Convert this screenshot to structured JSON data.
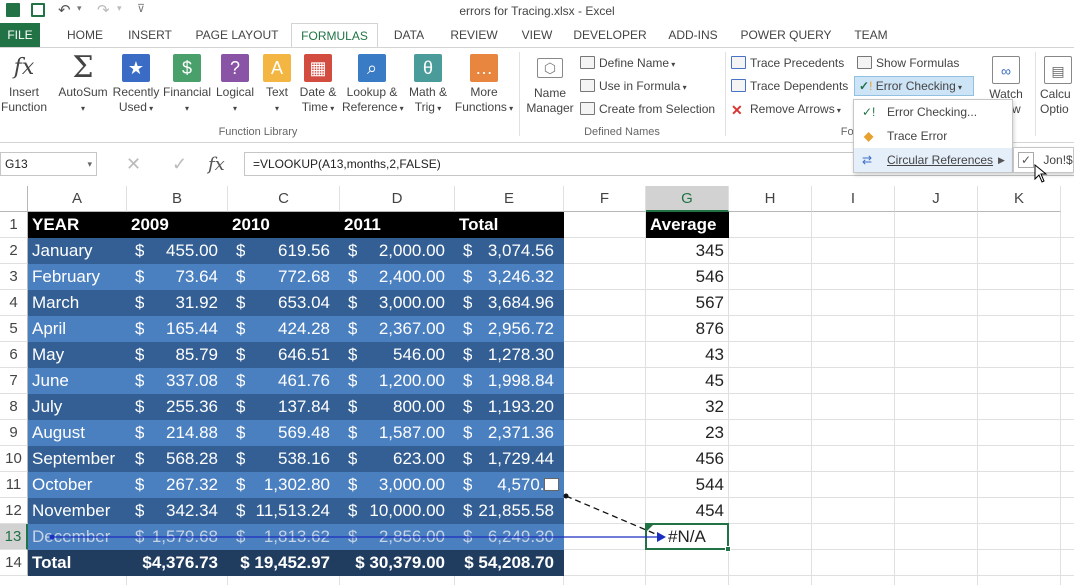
{
  "window": {
    "title": "errors for Tracing.xlsx - Excel"
  },
  "colors": {
    "excel_green": "#217346",
    "header_black": "#000000",
    "band_dark": "#335f94",
    "band_light": "#4a7fc0",
    "total_dark": "#203d5f",
    "trace_blue": "#1a2fbf"
  },
  "tabs": [
    "FILE",
    "HOME",
    "INSERT",
    "PAGE LAYOUT",
    "FORMULAS",
    "DATA",
    "REVIEW",
    "VIEW",
    "DEVELOPER",
    "ADD-INS",
    "POWER QUERY",
    "TEAM"
  ],
  "ribbon": {
    "insert_function": [
      "Insert",
      "Function"
    ],
    "autosum": "AutoSum",
    "recently_used": [
      "Recently",
      "Used"
    ],
    "financial": "Financial",
    "logical": "Logical",
    "text": "Text",
    "date_time": [
      "Date &",
      "Time"
    ],
    "lookup": [
      "Lookup &",
      "Reference"
    ],
    "math": [
      "Math &",
      "Trig"
    ],
    "more": [
      "More",
      "Functions"
    ],
    "function_library": "Function Library",
    "name_manager": [
      "Name",
      "Manager"
    ],
    "define_name": "Define Name",
    "use_in_formula": "Use in Formula",
    "create_from_selection": "Create from Selection",
    "defined_names": "Defined Names",
    "trace_precedents": "Trace Precedents",
    "trace_dependents": "Trace Dependents",
    "remove_arrows": "Remove Arrows",
    "show_formulas": "Show Formulas",
    "error_checking": "Error Checking",
    "formula_auditing_partial": "For",
    "watch": [
      "Watch",
      "ow"
    ],
    "calc": [
      "Calcu",
      "Optio"
    ]
  },
  "menu": {
    "items": [
      "Error Checking...",
      "Trace Error",
      "Circular References"
    ],
    "submenu_item": "Jon!$"
  },
  "formula_bar": {
    "name_box": "G13",
    "fx": "fx",
    "formula": "=VLOOKUP(A13,months,2,FALSE)"
  },
  "columns": [
    "A",
    "B",
    "C",
    "D",
    "E",
    "F",
    "G",
    "H",
    "I",
    "J",
    "K"
  ],
  "rows": [
    "1",
    "2",
    "3",
    "4",
    "5",
    "6",
    "7",
    "8",
    "9",
    "10",
    "11",
    "12",
    "13",
    "14"
  ],
  "header_row": [
    "YEAR",
    "2009",
    "2010",
    "2011",
    "Total"
  ],
  "g_header": "Average",
  "table": [
    {
      "month": "January",
      "b": "455.00",
      "c": "619.56",
      "d": "2,000.00",
      "e": "3,074.56",
      "g": "345"
    },
    {
      "month": "February",
      "b": "73.64",
      "c": "772.68",
      "d": "2,400.00",
      "e": "3,246.32",
      "g": "546"
    },
    {
      "month": "March",
      "b": "31.92",
      "c": "653.04",
      "d": "3,000.00",
      "e": "3,684.96",
      "g": "567"
    },
    {
      "month": "April",
      "b": "165.44",
      "c": "424.28",
      "d": "2,367.00",
      "e": "2,956.72",
      "g": "876"
    },
    {
      "month": "May",
      "b": "85.79",
      "c": "646.51",
      "d": "546.00",
      "e": "1,278.30",
      "g": "43"
    },
    {
      "month": "June",
      "b": "337.08",
      "c": "461.76",
      "d": "1,200.00",
      "e": "1,998.84",
      "g": "45"
    },
    {
      "month": "July",
      "b": "255.36",
      "c": "137.84",
      "d": "800.00",
      "e": "1,193.20",
      "g": "32"
    },
    {
      "month": "August",
      "b": "214.88",
      "c": "569.48",
      "d": "1,587.00",
      "e": "2,371.36",
      "g": "23"
    },
    {
      "month": "September",
      "b": "568.28",
      "c": "538.16",
      "d": "623.00",
      "e": "1,729.44",
      "g": "456"
    },
    {
      "month": "October",
      "b": "267.32",
      "c": "1,302.80",
      "d": "3,000.00",
      "e": "4,570.1",
      "g": "544"
    },
    {
      "month": "November",
      "b": "342.34",
      "c": "11,513.24",
      "d": "10,000.00",
      "e": "21,855.58",
      "g": "454"
    },
    {
      "month": "December",
      "b": "1,579.68",
      "c": "1,813.62",
      "d": "2,856.00",
      "e": "6,249.30",
      "g": "#N/A"
    }
  ],
  "total_row": {
    "label": "Total",
    "b": "$4,376.73",
    "c": "$ 19,452.97",
    "d": "$ 30,379.00",
    "e": "$ 54,208.70"
  },
  "currency": "$"
}
